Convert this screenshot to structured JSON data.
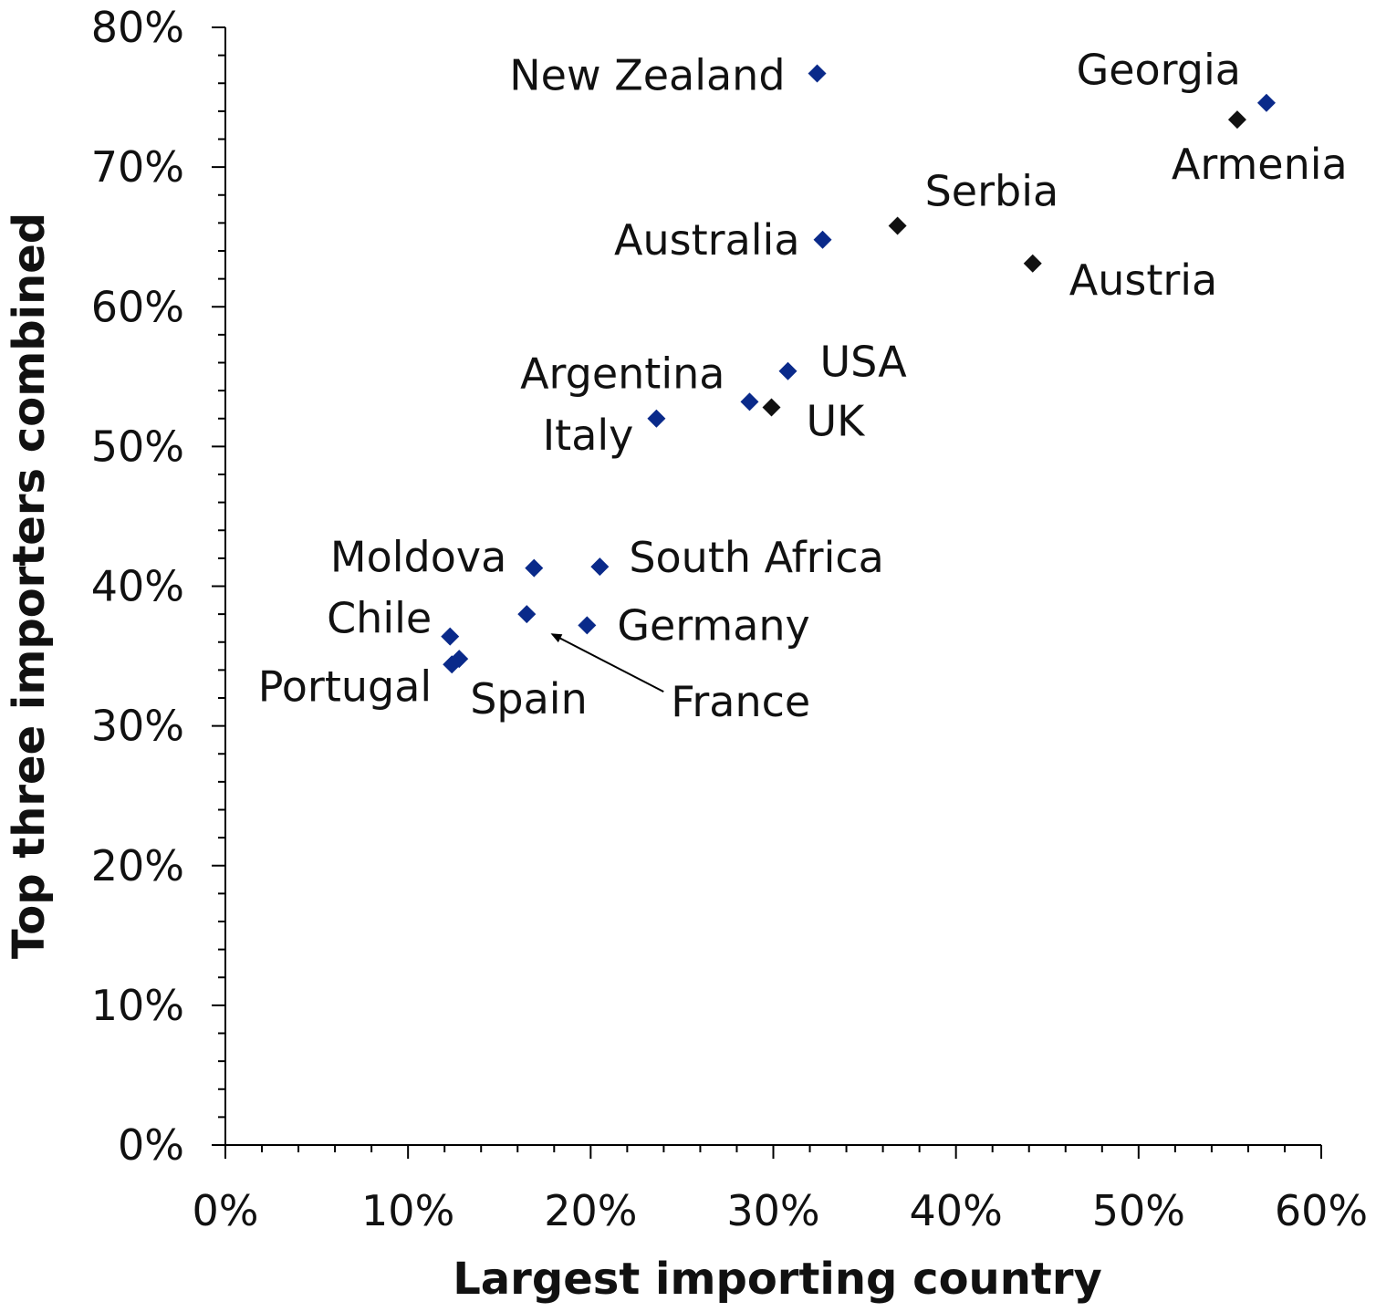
{
  "chart_data": {
    "type": "scatter",
    "xlabel": "Largest importing country",
    "ylabel": "Top three importers combined",
    "xlim": [
      0,
      60
    ],
    "ylim": [
      0,
      80
    ],
    "x_major_ticks": [
      0,
      10,
      20,
      30,
      40,
      50,
      60
    ],
    "y_major_ticks": [
      0,
      10,
      20,
      30,
      40,
      50,
      60,
      70,
      80
    ],
    "x_tick_labels": [
      "0%",
      "10%",
      "20%",
      "30%",
      "40%",
      "50%",
      "60%"
    ],
    "y_tick_labels": [
      "0%",
      "10%",
      "20%",
      "30%",
      "40%",
      "50%",
      "60%",
      "70%",
      "80%"
    ],
    "grid": false,
    "legend": "none",
    "colors": {
      "blue_marker": "#0a2a8a",
      "black_marker": "#111111"
    },
    "points": [
      {
        "label": "New Zealand",
        "x": 32.4,
        "y": 76.7,
        "color": "blue_marker"
      },
      {
        "label": "Georgia",
        "x": 57.0,
        "y": 74.6,
        "color": "blue_marker"
      },
      {
        "label": "Armenia",
        "x": 55.4,
        "y": 73.4,
        "color": "black_marker"
      },
      {
        "label": "Serbia",
        "x": 36.8,
        "y": 65.8,
        "color": "black_marker"
      },
      {
        "label": "Australia",
        "x": 32.7,
        "y": 64.8,
        "color": "blue_marker"
      },
      {
        "label": "Austria",
        "x": 44.2,
        "y": 63.1,
        "color": "black_marker"
      },
      {
        "label": "USA",
        "x": 30.8,
        "y": 55.4,
        "color": "blue_marker"
      },
      {
        "label": "Argentina",
        "x": 28.7,
        "y": 53.2,
        "color": "blue_marker"
      },
      {
        "label": "UK",
        "x": 29.9,
        "y": 52.8,
        "color": "black_marker"
      },
      {
        "label": "Italy",
        "x": 23.6,
        "y": 52.0,
        "color": "blue_marker"
      },
      {
        "label": "Moldova",
        "x": 16.9,
        "y": 41.3,
        "color": "blue_marker"
      },
      {
        "label": "South Africa",
        "x": 20.5,
        "y": 41.4,
        "color": "blue_marker"
      },
      {
        "label": "France",
        "x": 16.5,
        "y": 38.0,
        "color": "blue_marker"
      },
      {
        "label": "Germany",
        "x": 19.8,
        "y": 37.2,
        "color": "blue_marker"
      },
      {
        "label": "Chile",
        "x": 12.3,
        "y": 36.4,
        "color": "blue_marker"
      },
      {
        "label": "Spain",
        "x": 12.8,
        "y": 34.8,
        "color": "blue_marker"
      },
      {
        "label": "Portugal",
        "x": 12.4,
        "y": 34.4,
        "color": "blue_marker"
      }
    ]
  }
}
